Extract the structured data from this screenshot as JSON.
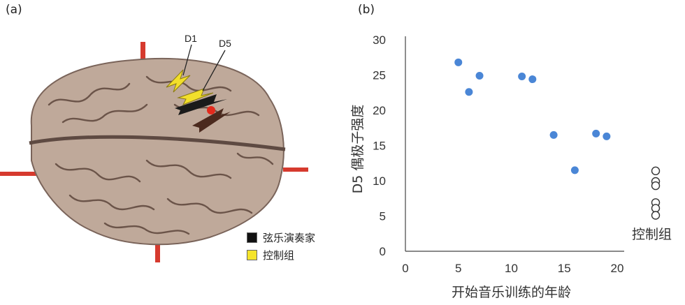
{
  "panels": {
    "a_label": "(a)",
    "b_label": "(b)"
  },
  "brain": {
    "arrow_labels": [
      "D1",
      "D5"
    ],
    "legend": [
      {
        "label": "弦乐演奏家",
        "color": "#111111"
      },
      {
        "label": "控制组",
        "color": "#f5e42a"
      }
    ]
  },
  "chart_data": {
    "type": "scatter",
    "xlabel": "开始音乐训练的年龄",
    "ylabel": "D5 偶极子强度",
    "xlim": [
      0,
      20
    ],
    "ylim": [
      0,
      30
    ],
    "x_ticks": [
      "0",
      "5",
      "10",
      "15",
      "20"
    ],
    "y_ticks": [
      "0",
      "5",
      "10",
      "15",
      "20",
      "25",
      "30"
    ],
    "series": [
      {
        "marker": "filled",
        "color": "#4a86d6",
        "points": [
          [
            5,
            26.8
          ],
          [
            6,
            22.6
          ],
          [
            7,
            24.9
          ],
          [
            11,
            24.8
          ],
          [
            12,
            24.4
          ],
          [
            14,
            16.5
          ],
          [
            16,
            11.5
          ],
          [
            18,
            16.7
          ],
          [
            19,
            16.3
          ]
        ]
      },
      {
        "name": "控制组",
        "marker": "open",
        "color": "#333333",
        "values": [
          11.4,
          9.9,
          9.3,
          6.9,
          6.1,
          5.1
        ]
      }
    ]
  }
}
